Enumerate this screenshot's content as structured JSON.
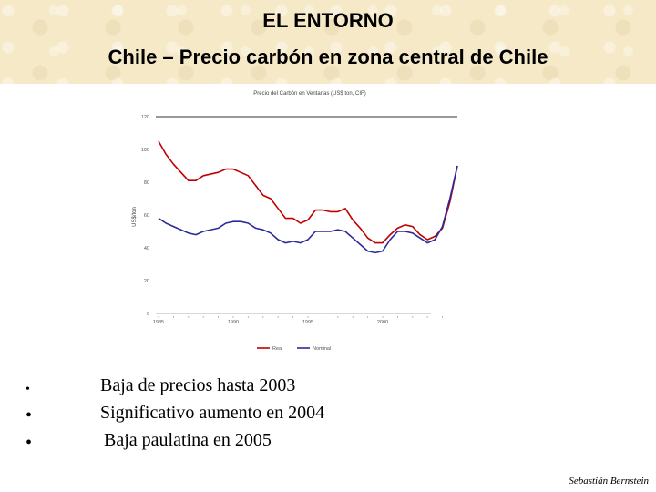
{
  "slide": {
    "title_line1": "EL ENTORNO",
    "title_line2": "Chile – Precio carbón en zona central de Chile",
    "bullets": [
      "Baja de precios hasta 2003",
      "Significativo aumento en 2004",
      "Baja paulatina en 2005"
    ],
    "author": "Sebastián Bernstein"
  },
  "chart_data": {
    "type": "line",
    "title": "Precio del Carbón en Ventanas (US$ ton, CIF)",
    "xlabel": "",
    "ylabel": "US$/ton",
    "xlim": [
      1985,
      2005
    ],
    "ylim": [
      0,
      120
    ],
    "yticks": [
      0,
      20,
      40,
      60,
      80,
      100,
      120
    ],
    "xtick_labels": [
      {
        "x": 1985,
        "label": "1985"
      },
      {
        "x": 1990,
        "label": "1990"
      },
      {
        "x": 1995,
        "label": "1995"
      },
      {
        "x": 2000,
        "label": "2000"
      }
    ],
    "grid": false,
    "legend_position": "bottom-center",
    "series": [
      {
        "name": "Real",
        "color": "#c00000",
        "x": [
          1985,
          1985.5,
          1986,
          1987,
          1987.5,
          1988,
          1989,
          1989.5,
          1990,
          1990.5,
          1991,
          1991.5,
          1992,
          1992.5,
          1993,
          1993.5,
          1994,
          1994.5,
          1995,
          1995.5,
          1996,
          1996.5,
          1997,
          1997.5,
          1998,
          1998.5,
          1999,
          1999.5,
          2000,
          2000.5,
          2001,
          2001.5,
          2002,
          2002.5,
          2003,
          2003.5,
          2004,
          2004.5,
          2005
        ],
        "values": [
          105,
          97,
          91,
          81,
          81,
          84,
          86,
          88,
          88,
          86,
          84,
          78,
          72,
          70,
          64,
          58,
          58,
          55,
          57,
          63,
          63,
          62,
          62,
          64,
          57,
          52,
          46,
          43,
          43,
          48,
          52,
          54,
          53,
          48,
          45,
          47,
          52,
          68,
          90
        ]
      },
      {
        "name": "Nominal",
        "color": "#2a2a9c",
        "x": [
          1985,
          1985.5,
          1986,
          1987,
          1987.5,
          1988,
          1989,
          1989.5,
          1990,
          1990.5,
          1991,
          1991.5,
          1992,
          1992.5,
          1993,
          1993.5,
          1994,
          1994.5,
          1995,
          1995.5,
          1996,
          1996.5,
          1997,
          1997.5,
          1998,
          1998.5,
          1999,
          1999.5,
          2000,
          2000.5,
          2001,
          2001.5,
          2002,
          2002.5,
          2003,
          2003.5,
          2004,
          2004.5,
          2005
        ],
        "values": [
          58,
          55,
          53,
          49,
          48,
          50,
          52,
          55,
          56,
          56,
          55,
          52,
          51,
          49,
          45,
          43,
          44,
          43,
          45,
          50,
          50,
          50,
          51,
          50,
          46,
          42,
          38,
          37,
          38,
          45,
          50,
          50,
          49,
          46,
          43,
          45,
          53,
          70,
          90
        ]
      }
    ]
  }
}
